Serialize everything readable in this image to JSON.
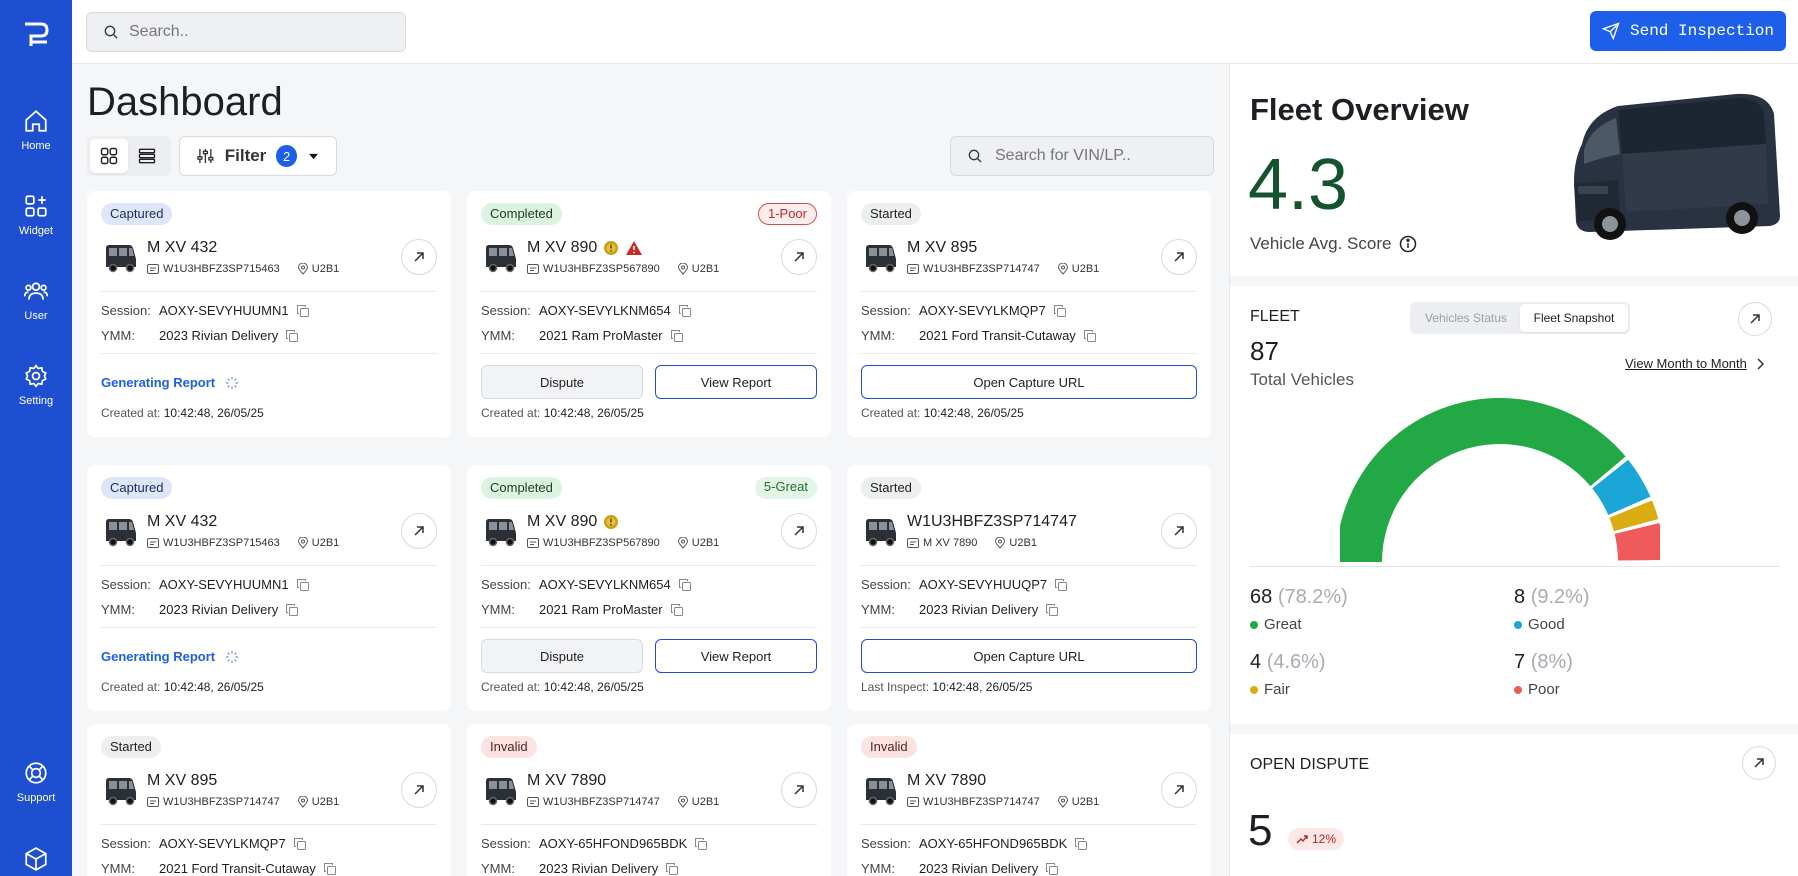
{
  "sidebar": {
    "items": [
      {
        "label": "Home",
        "icon": "home-icon"
      },
      {
        "label": "Widget",
        "icon": "widget-icon"
      },
      {
        "label": "User",
        "icon": "users-icon"
      },
      {
        "label": "Setting",
        "icon": "gear-icon"
      },
      {
        "label": "Support",
        "icon": "lifebuoy-icon"
      }
    ]
  },
  "topbar": {
    "search_placeholder": "Search..",
    "send_inspection_label": "Send Inspection"
  },
  "main": {
    "title": "Dashboard",
    "filter_label": "Filter",
    "filter_count": "2",
    "vin_search_placeholder": "Search for VIN/LP.."
  },
  "labels": {
    "session": "Session:",
    "ymm": "YMM:",
    "created_at": "Created at:",
    "last_inspect": "Last Inspect:",
    "generating_report": "Generating Report",
    "dispute": "Dispute",
    "view_report": "View Report",
    "open_capture_url": "Open Capture URL"
  },
  "cards": [
    {
      "status": "Captured",
      "name": "M XV 432",
      "vin": "W1U3HBFZ3SP715463",
      "location": "U2B1",
      "session": "AOXY-SEVYHUUMN1",
      "ymm": "2023 Rivian Delivery",
      "timestamp": "10:42:48, 26/05/25"
    },
    {
      "status": "Completed",
      "score": "1-Poor",
      "name": "M XV 890",
      "vin": "W1U3HBFZ3SP567890",
      "location": "U2B1",
      "session": "AOXY-SEVYLKNM654",
      "ymm": "2021 Ram ProMaster",
      "timestamp": "10:42:48, 26/05/25"
    },
    {
      "status": "Started",
      "name": "M XV 895",
      "vin": "W1U3HBFZ3SP714747",
      "location": "U2B1",
      "session": "AOXY-SEVYLKMQP7",
      "ymm": "2021 Ford Transit-Cutaway",
      "timestamp": "10:42:48, 26/05/25"
    },
    {
      "status": "Captured",
      "name": "M XV 432",
      "vin": "W1U3HBFZ3SP715463",
      "location": "U2B1",
      "session": "AOXY-SEVYHUUMN1",
      "ymm": "2023 Rivian Delivery",
      "timestamp": "10:42:48, 26/05/25"
    },
    {
      "status": "Completed",
      "score": "5-Great",
      "name": "M XV 890",
      "vin": "W1U3HBFZ3SP567890",
      "location": "U2B1",
      "session": "AOXY-SEVYLKNM654",
      "ymm": "2021 Ram ProMaster",
      "timestamp": "10:42:48, 26/05/25"
    },
    {
      "status": "Started",
      "name": "W1U3HBFZ3SP714747",
      "vin": "M XV 7890",
      "location": "U2B1",
      "session": "AOXY-SEVYHUUQP7",
      "ymm": "2023 Rivian Delivery",
      "timestamp": "10:42:48, 26/05/25"
    },
    {
      "status": "Started",
      "name": "M XV 895",
      "vin": "W1U3HBFZ3SP714747",
      "location": "U2B1",
      "session": "AOXY-SEVYLKMQP7",
      "ymm": "2021 Ford Transit-Cutaway"
    },
    {
      "status": "Invalid",
      "name": "M XV 7890",
      "vin": "W1U3HBFZ3SP714747",
      "location": "U2B1",
      "session": "AOXY-65HFOND965BDK",
      "ymm": "2023 Rivian Delivery"
    },
    {
      "status": "Invalid",
      "name": "M XV 7890",
      "vin": "W1U3HBFZ3SP714747",
      "location": "U2B1",
      "session": "AOXY-65HFOND965BDK",
      "ymm": "2023 Rivian Delivery"
    }
  ],
  "fleet_overview": {
    "title": "Fleet Overview",
    "score": "4.3",
    "score_label": "Vehicle Avg. Score"
  },
  "fleet": {
    "label": "FLEET",
    "tabs": [
      "Vehicles Status",
      "Fleet Snapshot"
    ],
    "total": "87",
    "total_label": "Total Vehicles",
    "month_link": "View Month to Month",
    "stats": [
      {
        "count": "68",
        "pct": "(78.2%)",
        "label": "Great",
        "color": "#22a845"
      },
      {
        "count": "8",
        "pct": "(9.2%)",
        "label": "Good",
        "color": "#1aa6d6"
      },
      {
        "count": "4",
        "pct": "(4.6%)",
        "label": "Fair",
        "color": "#d9ac12"
      },
      {
        "count": "7",
        "pct": "(8%)",
        "label": "Poor",
        "color": "#ef5b5b"
      }
    ]
  },
  "open_dispute": {
    "title": "OPEN DISPUTE",
    "count": "5",
    "trend": "12%"
  },
  "colors": {
    "primary": "#1d4fd0",
    "accent": "#1d5fe8",
    "great": "#22a845",
    "good": "#1aa6d6",
    "fair": "#d9ac12",
    "poor": "#ef5b5b"
  }
}
